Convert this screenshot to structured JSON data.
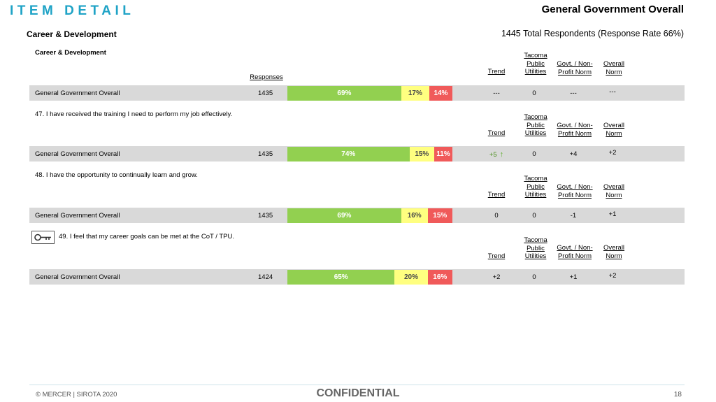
{
  "header": {
    "page_title": "ITEM DETAIL",
    "report_title": "General Government Overall",
    "section_title": "Career & Development",
    "respondents": "1445 Total Respondents (Response Rate  66%)"
  },
  "columns": {
    "responses": "Responses",
    "trend": "Trend",
    "tacoma_line1": "Tacoma",
    "tacoma_line2": "Public",
    "tacoma_line3": "Utilities",
    "govt_line1": "Govt. / Non-",
    "govt_line2": "Profit Norm",
    "overall_line1": "Overall",
    "overall_line2": "Norm"
  },
  "blocks": [
    {
      "heading": "Career & Development",
      "row": {
        "label": "General Government Overall",
        "n": "1435",
        "fav": "69%",
        "neu": "17%",
        "unf": "14%",
        "trend": "---",
        "tacoma": "0",
        "govt": "---",
        "overall": "---"
      },
      "fav_pct": 69,
      "neu_pct": 17,
      "unf_pct": 14
    },
    {
      "heading": "47. I have received the training I need to perform my job effectively.",
      "row": {
        "label": "General Government Overall",
        "n": "1435",
        "fav": "74%",
        "neu": "15%",
        "unf": "11%",
        "trend": "+5",
        "tacoma": "0",
        "govt": "+4",
        "overall": "+2"
      },
      "fav_pct": 74,
      "neu_pct": 15,
      "unf_pct": 11
    },
    {
      "heading": "48. I have the opportunity to continually learn and grow.",
      "row": {
        "label": "General Government Overall",
        "n": "1435",
        "fav": "69%",
        "neu": "16%",
        "unf": "15%",
        "trend": "0",
        "tacoma": "0",
        "govt": "-1",
        "overall": "+1"
      },
      "fav_pct": 69,
      "neu_pct": 16,
      "unf_pct": 15
    },
    {
      "heading": "49. I feel that my career goals can be met at the CoT / TPU.",
      "row": {
        "label": "General Government Overall",
        "n": "1424",
        "fav": "65%",
        "neu": "20%",
        "unf": "16%",
        "trend": "+2",
        "tacoma": "0",
        "govt": "+1",
        "overall": "+2"
      },
      "fav_pct": 65,
      "neu_pct": 20,
      "unf_pct": 16
    }
  ],
  "icons": {
    "key": "key-icon",
    "trend_up": "arrow-up-icon"
  },
  "colors": {
    "favorable": "#92d050",
    "neutral": "#ffff80",
    "unfavorable": "#f05a5a",
    "accent": "#1fa3c6"
  },
  "footer": {
    "copyright": "© MERCER | SIROTA 2020",
    "confidential": "CONFIDENTIAL",
    "page_number": "18"
  }
}
